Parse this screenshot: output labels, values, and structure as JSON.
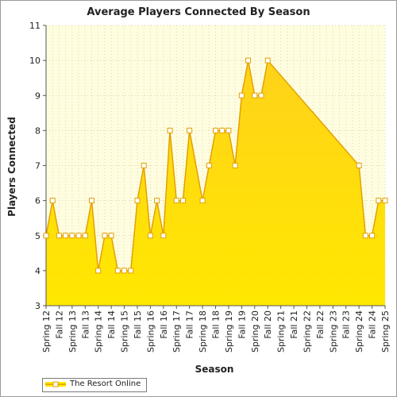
{
  "chart_data": {
    "type": "area",
    "title": "Average Players Connected By Season",
    "xlabel": "Season",
    "ylabel": "Players Connected",
    "ylim": [
      3,
      11
    ],
    "yticks": [
      3,
      4,
      5,
      6,
      7,
      8,
      9,
      10,
      11
    ],
    "grid": true,
    "legend_position": "bottom-left",
    "categories": [
      "Spring 12",
      "Fall 12",
      "Spring 13",
      "Fall 13",
      "Spring 14",
      "Fall 14",
      "Spring 15",
      "Fall 15",
      "Spring 16",
      "Fall 16",
      "Spring 17",
      "Fall 17",
      "Spring 18",
      "Fall 18",
      "Spring 19",
      "Fall 19",
      "Spring 20",
      "Fall 20",
      "Spring 21",
      "Fall 21",
      "Spring 22",
      "Fall 22",
      "Spring 23",
      "Fall 23",
      "Spring 24",
      "Fall 24",
      "Spring 25"
    ],
    "series": [
      {
        "name": "The Resort Online",
        "color": "#ffe800",
        "line_color": "#e3a000",
        "points": [
          {
            "x": 0.0,
            "y": 5
          },
          {
            "x": 0.5,
            "y": 6
          },
          {
            "x": 1.0,
            "y": 5
          },
          {
            "x": 1.5,
            "y": 5
          },
          {
            "x": 2.0,
            "y": 5
          },
          {
            "x": 2.5,
            "y": 5
          },
          {
            "x": 3.0,
            "y": 5
          },
          {
            "x": 3.5,
            "y": 6
          },
          {
            "x": 4.0,
            "y": 4
          },
          {
            "x": 4.5,
            "y": 5
          },
          {
            "x": 5.0,
            "y": 5
          },
          {
            "x": 5.5,
            "y": 4
          },
          {
            "x": 6.0,
            "y": 4
          },
          {
            "x": 6.5,
            "y": 4
          },
          {
            "x": 7.0,
            "y": 6
          },
          {
            "x": 7.5,
            "y": 7
          },
          {
            "x": 8.0,
            "y": 5
          },
          {
            "x": 8.5,
            "y": 6
          },
          {
            "x": 9.0,
            "y": 5
          },
          {
            "x": 9.5,
            "y": 8
          },
          {
            "x": 10.0,
            "y": 6
          },
          {
            "x": 10.5,
            "y": 6
          },
          {
            "x": 11.0,
            "y": 8
          },
          {
            "x": 12.0,
            "y": 6
          },
          {
            "x": 12.5,
            "y": 7
          },
          {
            "x": 13.0,
            "y": 8
          },
          {
            "x": 13.5,
            "y": 8
          },
          {
            "x": 14.0,
            "y": 8
          },
          {
            "x": 14.5,
            "y": 7
          },
          {
            "x": 15.0,
            "y": 9
          },
          {
            "x": 15.5,
            "y": 10
          },
          {
            "x": 16.0,
            "y": 9
          },
          {
            "x": 16.5,
            "y": 9
          },
          {
            "x": 17.0,
            "y": 10
          },
          {
            "x": 24.0,
            "y": 7
          },
          {
            "x": 24.5,
            "y": 5
          },
          {
            "x": 25.0,
            "y": 5
          },
          {
            "x": 25.5,
            "y": 6
          },
          {
            "x": 26.0,
            "y": 6
          }
        ]
      }
    ]
  }
}
